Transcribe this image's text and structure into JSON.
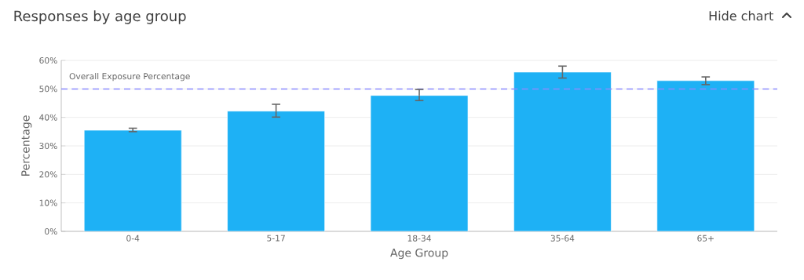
{
  "chart_data": {
    "type": "bar",
    "title": "Responses by age group",
    "xlabel": "Age Group",
    "ylabel": "Percentage",
    "categories": [
      "0-4",
      "5-17",
      "18-34",
      "35-64",
      "65+"
    ],
    "values": [
      35.5,
      42.2,
      47.7,
      55.9,
      52.9
    ],
    "errors": [
      [
        35.0,
        36.2
      ],
      [
        40.1,
        44.6
      ],
      [
        45.9,
        49.8
      ],
      [
        53.8,
        58.0
      ],
      [
        51.5,
        54.2
      ]
    ],
    "color": "#1eb1f5",
    "ylim": [
      0,
      60
    ],
    "yticks": [
      {
        "value": 0,
        "label": "0%"
      },
      {
        "value": 10,
        "label": "10%"
      },
      {
        "value": 20,
        "label": "20%"
      },
      {
        "value": 30,
        "label": "30%"
      },
      {
        "value": 40,
        "label": "40%"
      },
      {
        "value": 50,
        "label": "50%"
      },
      {
        "value": 60,
        "label": "60%"
      }
    ],
    "grid": "y",
    "ref_lines": [
      {
        "axis": "y",
        "value": 50,
        "label": "Overall Exposure Percentage",
        "color": "#8c8cff",
        "line_style": "dashed"
      }
    ],
    "annotations": [
      "Hide chart"
    ]
  }
}
